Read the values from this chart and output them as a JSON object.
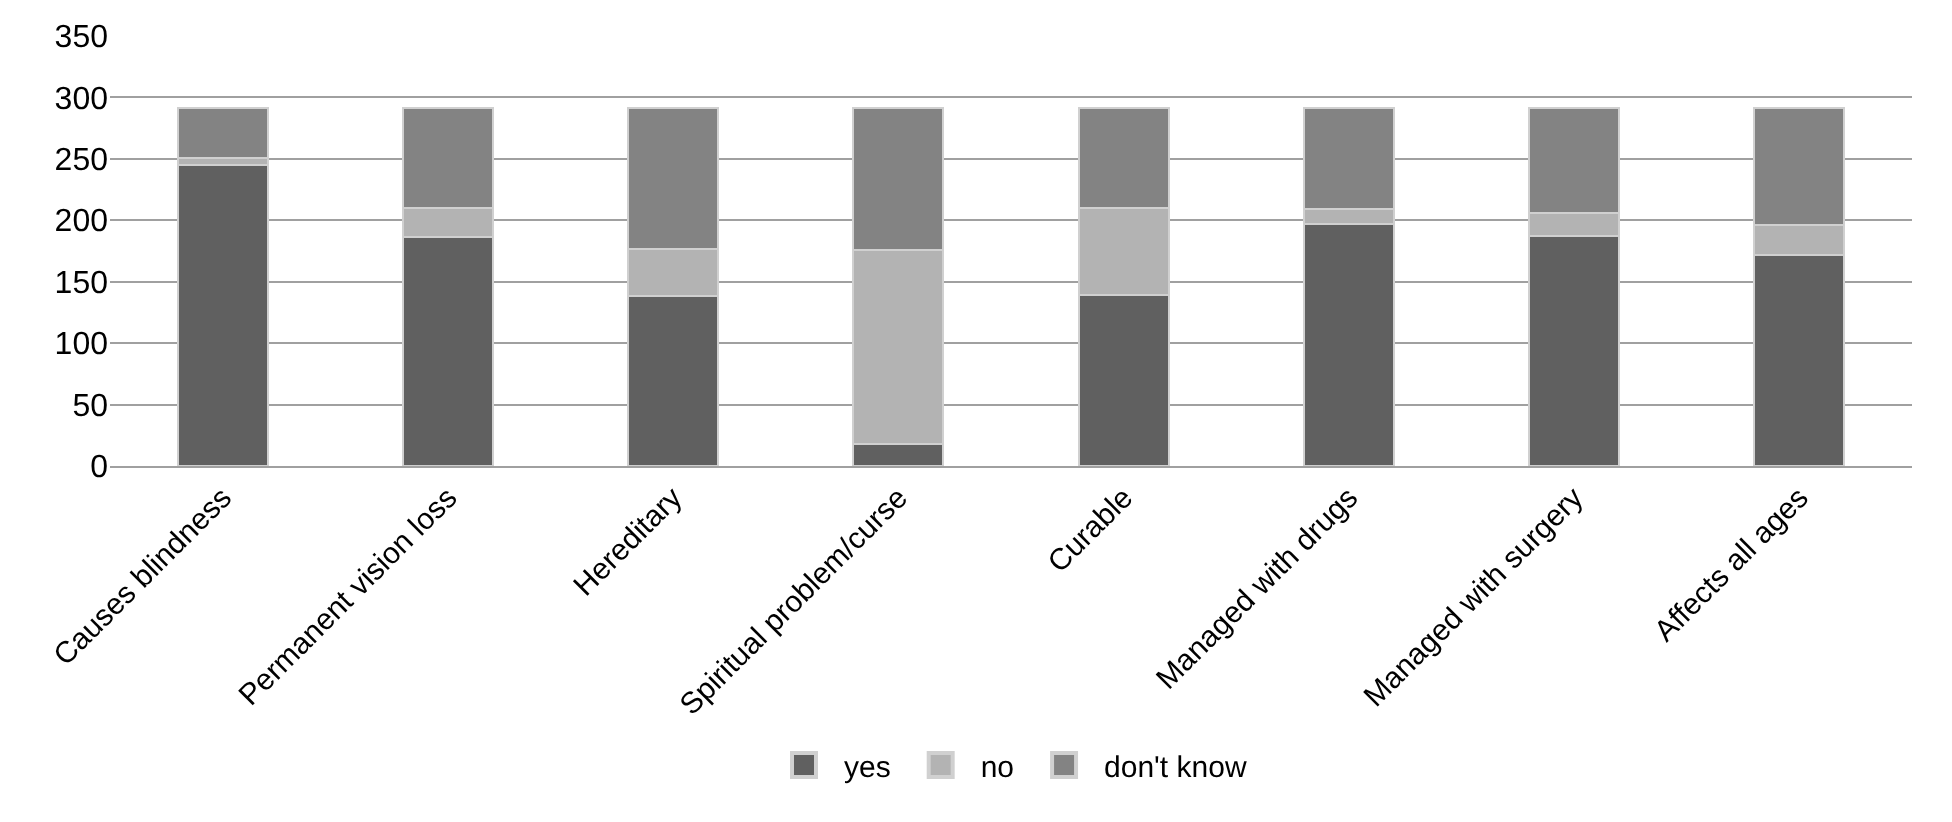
{
  "chart_data": {
    "type": "bar",
    "stacked": true,
    "categories": [
      "Causes blindness",
      "Permanent vision loss",
      "Hereditary",
      "Spiritual problem/curse",
      "Curable",
      "Managed with drugs",
      "Managed with surgery",
      "Affects all ages"
    ],
    "series": [
      {
        "name": "yes",
        "color": "#606060",
        "values": [
          245,
          186,
          138,
          18,
          139,
          197,
          187,
          172
        ]
      },
      {
        "name": "no",
        "color": "#b3b3b3",
        "values": [
          6,
          24,
          39,
          158,
          71,
          12,
          19,
          24
        ]
      },
      {
        "name": "don't know",
        "color": "#838383",
        "values": [
          40,
          81,
          114,
          115,
          81,
          82,
          85,
          95
        ]
      }
    ],
    "ylim": [
      0,
      350
    ],
    "yticks": [
      0,
      50,
      100,
      150,
      200,
      250,
      300,
      350
    ],
    "grid": "y",
    "legend": "bottom"
  }
}
